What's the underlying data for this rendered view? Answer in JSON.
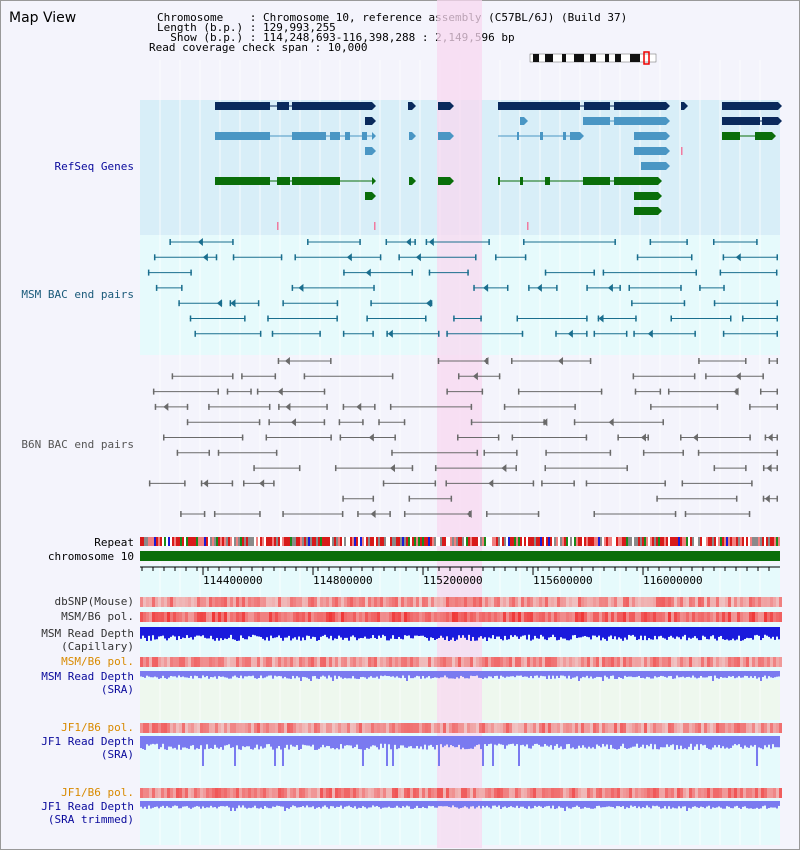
{
  "window": {
    "title": "Map View"
  },
  "info": {
    "chromosome_line": "Chromosome    : Chromosome 10, reference assembly (C57BL/6J) (Build 37)",
    "length_line": "Length (b.p.) : 129,993,255",
    "show_line": "  Show (b.p.) : 114,248,693-116,398,288 : 2,149,596 bp",
    "coverage_line": "Read coverage check span : 10,000"
  },
  "tracks": {
    "refseq": "RefSeq Genes",
    "msm_bac": "MSM BAC end pairs",
    "b6n_bac": "B6N BAC end pairs",
    "repeat": "Repeat",
    "chromosome": "chromosome 10",
    "dbsnp": "dbSNP(Mouse)",
    "msm_b6_pol": "MSM/B6 pol.",
    "msm_read_depth_cap_1": "MSM Read Depth",
    "msm_read_depth_cap_2": "(Capillary)",
    "msm_b6_pol_sra": "MSM/B6 pol.",
    "msm_read_depth_sra_1": "MSM Read Depth",
    "msm_read_depth_sra_2": "(SRA)",
    "jf1_b6_pol": "JF1/B6 pol.",
    "jf1_read_depth_1": "JF1 Read Depth",
    "jf1_read_depth_2": "(SRA)",
    "jf1_b6_pol_trim": "JF1/B6 pol.",
    "jf1_read_depth_trim_1": "JF1 Read Depth",
    "jf1_read_depth_trim_2": "(SRA trimmed)"
  },
  "ruler": {
    "ticks": [
      "114400000",
      "114800000",
      "115200000",
      "115600000",
      "116000000"
    ]
  },
  "colors": {
    "refseq_bg": "#d8eef8",
    "msm_bg": "#e6fafc",
    "b6n_bg": "#f4f4fc",
    "highlight": "#f8d8f0",
    "gene_dark": "#0a2a5c",
    "gene_mid": "#4a96c4",
    "gene_green": "#0a6e0a",
    "msm_line": "#1a6e8e",
    "b6n_line": "#6a6a6a",
    "chromosome": "#0a6e0a",
    "depth_blue": "#1a1adc",
    "depth_light": "#7a7af0",
    "label_blue": "#0a0a9c",
    "label_orange": "#d88a00"
  }
}
